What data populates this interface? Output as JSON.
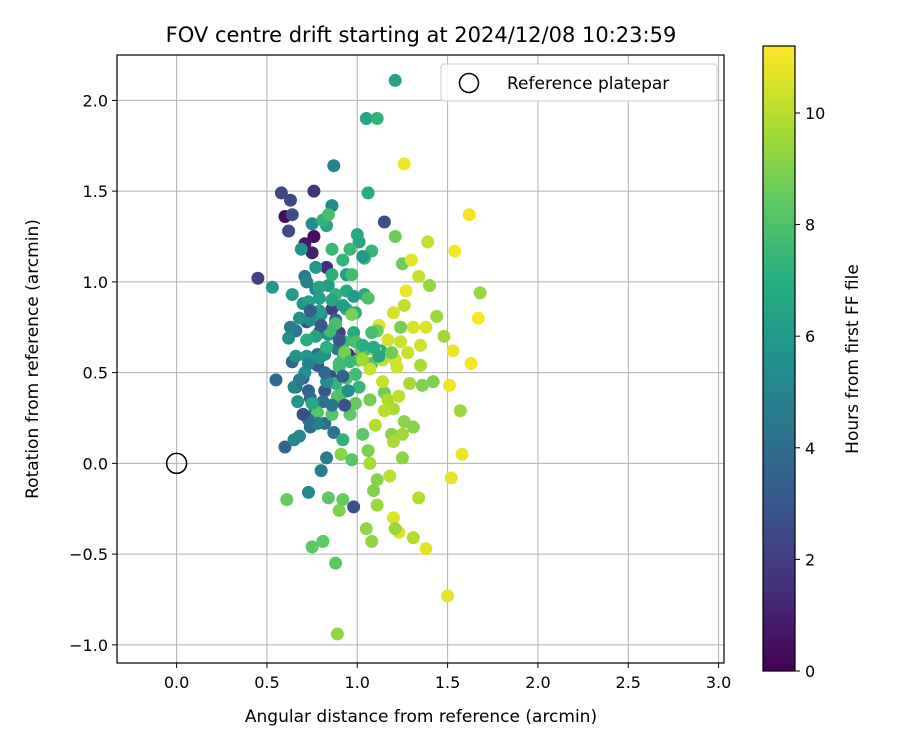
{
  "chart_data": {
    "type": "scatter",
    "title": "FOV centre drift starting at 2024/12/08 10:23:59",
    "xlabel": "Angular distance from reference (arcmin)",
    "ylabel": "Rotation from reference (arcmin)",
    "xlim": [
      -0.33,
      3.03
    ],
    "ylim": [
      -1.1,
      2.25
    ],
    "xticks": [
      0.0,
      0.5,
      1.0,
      1.5,
      2.0,
      2.5,
      3.0
    ],
    "xtick_labels": [
      "0.0",
      "0.5",
      "1.0",
      "1.5",
      "2.0",
      "2.5",
      "3.0"
    ],
    "yticks": [
      -1.0,
      -0.5,
      0.0,
      0.5,
      1.0,
      1.5,
      2.0
    ],
    "ytick_labels": [
      "−1.0",
      "−0.5",
      "0.0",
      "0.5",
      "1.0",
      "1.5",
      "2.0"
    ],
    "grid": true,
    "legend": {
      "location": "upper-right",
      "entries": [
        "Reference platepar"
      ]
    },
    "colormap": "viridis",
    "colorbar": {
      "label": "Hours from first FF file",
      "range": [
        0,
        11.2
      ],
      "ticks": [
        0,
        2,
        4,
        6,
        8,
        10
      ],
      "tick_labels": [
        "0",
        "2",
        "4",
        "6",
        "8",
        "10"
      ]
    },
    "reference_point": {
      "x": 0.0,
      "y": 0.0
    },
    "points": [
      {
        "x": 0.6,
        "y": 1.36,
        "hours": 0.3
      },
      {
        "x": 0.76,
        "y": 1.25,
        "hours": 0.4
      },
      {
        "x": 0.71,
        "y": 1.21,
        "hours": 0.8
      },
      {
        "x": 0.75,
        "y": 1.16,
        "hours": 1.0
      },
      {
        "x": 0.83,
        "y": 1.08,
        "hours": 1.3
      },
      {
        "x": 0.76,
        "y": 1.5,
        "hours": 1.6
      },
      {
        "x": 0.79,
        "y": 0.72,
        "hours": 1.5
      },
      {
        "x": 0.95,
        "y": 0.6,
        "hours": 1.2
      },
      {
        "x": 0.45,
        "y": 1.02,
        "hours": 2.2
      },
      {
        "x": 0.58,
        "y": 1.49,
        "hours": 2.3
      },
      {
        "x": 0.63,
        "y": 1.45,
        "hours": 2.4
      },
      {
        "x": 0.62,
        "y": 1.28,
        "hours": 2.5
      },
      {
        "x": 0.64,
        "y": 1.37,
        "hours": 2.6
      },
      {
        "x": 1.15,
        "y": 1.33,
        "hours": 2.7
      },
      {
        "x": 0.86,
        "y": 0.85,
        "hours": 2.1
      },
      {
        "x": 0.9,
        "y": 0.72,
        "hours": 2.2
      },
      {
        "x": 0.72,
        "y": 0.78,
        "hours": 2.8
      },
      {
        "x": 0.78,
        "y": 0.54,
        "hours": 2.9
      },
      {
        "x": 0.85,
        "y": 0.48,
        "hours": 2.6
      },
      {
        "x": 1.01,
        "y": 0.58,
        "hours": 2.8
      },
      {
        "x": 0.76,
        "y": 0.32,
        "hours": 2.5
      },
      {
        "x": 0.98,
        "y": -0.24,
        "hours": 2.7
      },
      {
        "x": 0.82,
        "y": 0.4,
        "hours": 3.0
      },
      {
        "x": 0.7,
        "y": 0.47,
        "hours": 3.2
      },
      {
        "x": 0.73,
        "y": 0.4,
        "hours": 3.5
      },
      {
        "x": 0.66,
        "y": 0.42,
        "hours": 3.6
      },
      {
        "x": 0.88,
        "y": 0.79,
        "hours": 3.4
      },
      {
        "x": 0.6,
        "y": 0.09,
        "hours": 3.6
      },
      {
        "x": 0.55,
        "y": 0.46,
        "hours": 3.8
      },
      {
        "x": 0.64,
        "y": 0.56,
        "hours": 3.7
      },
      {
        "x": 0.74,
        "y": 0.36,
        "hours": 3.9
      },
      {
        "x": 0.76,
        "y": 0.27,
        "hours": 3.8
      },
      {
        "x": 0.82,
        "y": 0.22,
        "hours": 4.0
      },
      {
        "x": 0.74,
        "y": 0.2,
        "hours": 4.1
      },
      {
        "x": 0.81,
        "y": 0.34,
        "hours": 4.2
      },
      {
        "x": 0.87,
        "y": 0.17,
        "hours": 4.3
      },
      {
        "x": 0.78,
        "y": 0.6,
        "hours": 4.2
      },
      {
        "x": 0.66,
        "y": 0.73,
        "hours": 4.4
      },
      {
        "x": 0.71,
        "y": 1.03,
        "hours": 4.5
      },
      {
        "x": 0.89,
        "y": 0.63,
        "hours": 4.4
      },
      {
        "x": 0.83,
        "y": 0.03,
        "hours": 4.5
      },
      {
        "x": 0.63,
        "y": 0.75,
        "hours": 4.7
      },
      {
        "x": 0.8,
        "y": -0.04,
        "hours": 4.8
      },
      {
        "x": 0.72,
        "y": 1.0,
        "hours": 4.9
      },
      {
        "x": 0.87,
        "y": 1.64,
        "hours": 5.0
      },
      {
        "x": 0.65,
        "y": 0.42,
        "hours": 5.0
      },
      {
        "x": 0.68,
        "y": 0.15,
        "hours": 5.1
      },
      {
        "x": 0.73,
        "y": -0.16,
        "hours": 5.2
      },
      {
        "x": 0.86,
        "y": 1.42,
        "hours": 5.3
      },
      {
        "x": 0.77,
        "y": 0.96,
        "hours": 5.3
      },
      {
        "x": 0.62,
        "y": 0.69,
        "hours": 5.4
      },
      {
        "x": 0.74,
        "y": 0.79,
        "hours": 5.4
      },
      {
        "x": 0.75,
        "y": 1.32,
        "hours": 5.5
      },
      {
        "x": 0.82,
        "y": 0.6,
        "hours": 5.5
      },
      {
        "x": 0.68,
        "y": 0.8,
        "hours": 5.6
      },
      {
        "x": 0.66,
        "y": 0.59,
        "hours": 5.6
      },
      {
        "x": 0.7,
        "y": 0.88,
        "hours": 5.7
      },
      {
        "x": 0.8,
        "y": 0.82,
        "hours": 5.7
      },
      {
        "x": 0.84,
        "y": 0.71,
        "hours": 5.8
      },
      {
        "x": 0.69,
        "y": 1.18,
        "hours": 5.8
      },
      {
        "x": 0.77,
        "y": 1.08,
        "hours": 5.9
      },
      {
        "x": 0.53,
        "y": 0.97,
        "hours": 6.0
      },
      {
        "x": 0.64,
        "y": 0.93,
        "hours": 6.1
      },
      {
        "x": 0.84,
        "y": 0.98,
        "hours": 6.2
      },
      {
        "x": 0.94,
        "y": 1.04,
        "hours": 6.2
      },
      {
        "x": 0.73,
        "y": 0.89,
        "hours": 6.3
      },
      {
        "x": 0.79,
        "y": 0.91,
        "hours": 6.3
      },
      {
        "x": 0.77,
        "y": 0.7,
        "hours": 6.4
      },
      {
        "x": 1.21,
        "y": 2.11,
        "hours": 6.4
      },
      {
        "x": 1.05,
        "y": 1.9,
        "hours": 6.6
      },
      {
        "x": 0.83,
        "y": 1.31,
        "hours": 6.5
      },
      {
        "x": 1.04,
        "y": 0.93,
        "hours": 6.6
      },
      {
        "x": 1.0,
        "y": 1.26,
        "hours": 6.7
      },
      {
        "x": 1.01,
        "y": 1.22,
        "hours": 6.7
      },
      {
        "x": 0.92,
        "y": 0.57,
        "hours": 6.8
      },
      {
        "x": 0.98,
        "y": 0.72,
        "hours": 6.8
      },
      {
        "x": 1.13,
        "y": 0.62,
        "hours": 6.9
      },
      {
        "x": 1.06,
        "y": 1.49,
        "hours": 6.9
      },
      {
        "x": 0.72,
        "y": 0.68,
        "hours": 7.0
      },
      {
        "x": 0.94,
        "y": 0.85,
        "hours": 7.0
      },
      {
        "x": 0.86,
        "y": 1.04,
        "hours": 7.1
      },
      {
        "x": 0.99,
        "y": 0.83,
        "hours": 7.1
      },
      {
        "x": 1.11,
        "y": 1.9,
        "hours": 7.2
      },
      {
        "x": 0.81,
        "y": 1.34,
        "hours": 7.2
      },
      {
        "x": 0.92,
        "y": 1.12,
        "hours": 7.3
      },
      {
        "x": 0.88,
        "y": 0.93,
        "hours": 7.3
      },
      {
        "x": 1.04,
        "y": 1.13,
        "hours": 7.4
      },
      {
        "x": 1.08,
        "y": 1.17,
        "hours": 7.4
      },
      {
        "x": 0.96,
        "y": 1.18,
        "hours": 7.5
      },
      {
        "x": 0.86,
        "y": 1.18,
        "hours": 7.5
      },
      {
        "x": 1.05,
        "y": 0.63,
        "hours": 7.6
      },
      {
        "x": 0.93,
        "y": 0.67,
        "hours": 7.6
      },
      {
        "x": 0.99,
        "y": 0.49,
        "hours": 7.7
      },
      {
        "x": 0.9,
        "y": 0.53,
        "hours": 7.7
      },
      {
        "x": 0.84,
        "y": 1.37,
        "hours": 7.8
      },
      {
        "x": 0.97,
        "y": 1.04,
        "hours": 7.8
      },
      {
        "x": 0.88,
        "y": 0.77,
        "hours": 7.9
      },
      {
        "x": 0.9,
        "y": 0.35,
        "hours": 7.9
      },
      {
        "x": 1.06,
        "y": 0.91,
        "hours": 8.0
      },
      {
        "x": 0.92,
        "y": 0.39,
        "hours": 8.0
      },
      {
        "x": 1.01,
        "y": 0.57,
        "hours": 8.1
      },
      {
        "x": 1.08,
        "y": 0.55,
        "hours": 8.1
      },
      {
        "x": 0.78,
        "y": 0.28,
        "hours": 8.2
      },
      {
        "x": 0.86,
        "y": 0.27,
        "hours": 8.2
      },
      {
        "x": 0.88,
        "y": -0.55,
        "hours": 8.3
      },
      {
        "x": 0.84,
        "y": -0.19,
        "hours": 8.3
      },
      {
        "x": 0.75,
        "y": -0.46,
        "hours": 8.4
      },
      {
        "x": 0.81,
        "y": -0.43,
        "hours": 8.4
      },
      {
        "x": 0.61,
        "y": -0.2,
        "hours": 8.5
      },
      {
        "x": 0.92,
        "y": -0.2,
        "hours": 8.5
      },
      {
        "x": 1.21,
        "y": 1.25,
        "hours": 8.6
      },
      {
        "x": 1.25,
        "y": 1.1,
        "hours": 8.6
      },
      {
        "x": 1.02,
        "y": 0.63,
        "hours": 8.7
      },
      {
        "x": 1.15,
        "y": 0.39,
        "hours": 8.7
      },
      {
        "x": 1.07,
        "y": 0.35,
        "hours": 8.8
      },
      {
        "x": 0.93,
        "y": 0.61,
        "hours": 8.8
      },
      {
        "x": 0.97,
        "y": 0.82,
        "hours": 8.9
      },
      {
        "x": 1.06,
        "y": 0.07,
        "hours": 8.9
      },
      {
        "x": 0.9,
        "y": -0.26,
        "hours": 9.0
      },
      {
        "x": 1.09,
        "y": -0.15,
        "hours": 9.0
      },
      {
        "x": 1.11,
        "y": -0.09,
        "hours": 9.1
      },
      {
        "x": 1.19,
        "y": 0.16,
        "hours": 9.1
      },
      {
        "x": 1.25,
        "y": 0.03,
        "hours": 9.2
      },
      {
        "x": 0.91,
        "y": 0.05,
        "hours": 9.2
      },
      {
        "x": 0.89,
        "y": -0.94,
        "hours": 9.3
      },
      {
        "x": 1.08,
        "y": -0.43,
        "hours": 9.3
      },
      {
        "x": 1.4,
        "y": 0.98,
        "hours": 9.4
      },
      {
        "x": 1.68,
        "y": 0.94,
        "hours": 9.4
      },
      {
        "x": 1.57,
        "y": 0.29,
        "hours": 9.5
      },
      {
        "x": 1.44,
        "y": 0.81,
        "hours": 9.5
      },
      {
        "x": 1.48,
        "y": 0.7,
        "hours": 9.6
      },
      {
        "x": 1.25,
        "y": 0.16,
        "hours": 9.6
      },
      {
        "x": 1.35,
        "y": 0.54,
        "hours": 9.7
      },
      {
        "x": 1.29,
        "y": 0.44,
        "hours": 9.7
      },
      {
        "x": 1.17,
        "y": 0.35,
        "hours": 9.8
      },
      {
        "x": 1.2,
        "y": 0.3,
        "hours": 9.8
      },
      {
        "x": 1.34,
        "y": -0.19,
        "hours": 9.9
      },
      {
        "x": 1.31,
        "y": -0.41,
        "hours": 9.9
      },
      {
        "x": 1.18,
        "y": -0.07,
        "hours": 10.0
      },
      {
        "x": 1.1,
        "y": 0.62,
        "hours": 10.0
      },
      {
        "x": 1.14,
        "y": 0.57,
        "hours": 10.1
      },
      {
        "x": 1.26,
        "y": 0.87,
        "hours": 10.1
      },
      {
        "x": 1.34,
        "y": 1.03,
        "hours": 10.2
      },
      {
        "x": 1.39,
        "y": 1.22,
        "hours": 10.2
      },
      {
        "x": 1.24,
        "y": 0.67,
        "hours": 10.3
      },
      {
        "x": 1.28,
        "y": 0.61,
        "hours": 10.3
      },
      {
        "x": 1.35,
        "y": 0.65,
        "hours": 10.4
      },
      {
        "x": 1.22,
        "y": 0.53,
        "hours": 10.4
      },
      {
        "x": 1.31,
        "y": 0.75,
        "hours": 10.5
      },
      {
        "x": 1.2,
        "y": 0.83,
        "hours": 10.5
      },
      {
        "x": 1.38,
        "y": 0.75,
        "hours": 10.6
      },
      {
        "x": 1.2,
        "y": -0.3,
        "hours": 10.6
      },
      {
        "x": 1.23,
        "y": -0.38,
        "hours": 10.7
      },
      {
        "x": 1.38,
        "y": -0.47,
        "hours": 10.7
      },
      {
        "x": 1.5,
        "y": -0.73,
        "hours": 10.8
      },
      {
        "x": 1.52,
        "y": -0.08,
        "hours": 10.8
      },
      {
        "x": 1.58,
        "y": 0.05,
        "hours": 10.9
      },
      {
        "x": 1.53,
        "y": 0.62,
        "hours": 10.9
      },
      {
        "x": 1.54,
        "y": 1.17,
        "hours": 11.0
      },
      {
        "x": 1.62,
        "y": 1.37,
        "hours": 11.0
      },
      {
        "x": 1.67,
        "y": 0.8,
        "hours": 11.1
      },
      {
        "x": 1.63,
        "y": 0.55,
        "hours": 11.1
      },
      {
        "x": 1.26,
        "y": 1.65,
        "hours": 11.0
      },
      {
        "x": 1.51,
        "y": 0.43,
        "hours": 11.0
      },
      {
        "x": 1.27,
        "y": 0.95,
        "hours": 10.9
      },
      {
        "x": 1.3,
        "y": 1.12,
        "hours": 10.8
      },
      {
        "x": 1.12,
        "y": 0.76,
        "hours": 10.6
      },
      {
        "x": 1.17,
        "y": 0.68,
        "hours": 10.5
      },
      {
        "x": 1.21,
        "y": 0.57,
        "hours": 10.4
      },
      {
        "x": 1.07,
        "y": 0.52,
        "hours": 10.3
      },
      {
        "x": 1.14,
        "y": 0.45,
        "hours": 10.2
      },
      {
        "x": 1.23,
        "y": 0.37,
        "hours": 10.1
      },
      {
        "x": 1.15,
        "y": 0.29,
        "hours": 10.0
      },
      {
        "x": 1.1,
        "y": 0.21,
        "hours": 9.9
      },
      {
        "x": 1.2,
        "y": 0.12,
        "hours": 9.8
      },
      {
        "x": 1.07,
        "y": 0.0,
        "hours": 9.7
      },
      {
        "x": 1.03,
        "y": 0.57,
        "hours": 9.6
      },
      {
        "x": 1.11,
        "y": -0.23,
        "hours": 9.5
      },
      {
        "x": 1.21,
        "y": -0.36,
        "hours": 9.4
      },
      {
        "x": 1.05,
        "y": -0.36,
        "hours": 9.3
      },
      {
        "x": 1.26,
        "y": 0.23,
        "hours": 9.2
      },
      {
        "x": 1.31,
        "y": 0.2,
        "hours": 9.1
      },
      {
        "x": 1.36,
        "y": 0.43,
        "hours": 9.0
      },
      {
        "x": 1.42,
        "y": 0.45,
        "hours": 8.9
      },
      {
        "x": 1.24,
        "y": 0.75,
        "hours": 8.8
      },
      {
        "x": 1.19,
        "y": 0.61,
        "hours": 8.7
      },
      {
        "x": 1.11,
        "y": 0.73,
        "hours": 8.6
      },
      {
        "x": 0.99,
        "y": 0.33,
        "hours": 8.5
      },
      {
        "x": 0.96,
        "y": 0.27,
        "hours": 8.4
      },
      {
        "x": 1.03,
        "y": 0.16,
        "hours": 8.3
      },
      {
        "x": 0.97,
        "y": 0.02,
        "hours": 8.2
      },
      {
        "x": 0.89,
        "y": 0.37,
        "hours": 8.1
      },
      {
        "x": 0.94,
        "y": 0.47,
        "hours": 8.0
      },
      {
        "x": 0.99,
        "y": 0.67,
        "hours": 7.9
      },
      {
        "x": 1.08,
        "y": 0.72,
        "hours": 7.8
      },
      {
        "x": 0.9,
        "y": 0.55,
        "hours": 7.7
      },
      {
        "x": 0.85,
        "y": 0.73,
        "hours": 7.6
      },
      {
        "x": 0.96,
        "y": 0.56,
        "hours": 7.5
      },
      {
        "x": 1.01,
        "y": 0.42,
        "hours": 7.4
      },
      {
        "x": 0.88,
        "y": 0.44,
        "hours": 7.3
      },
      {
        "x": 0.92,
        "y": 0.13,
        "hours": 7.2
      },
      {
        "x": 0.83,
        "y": 0.64,
        "hours": 7.1
      },
      {
        "x": 1.03,
        "y": 0.65,
        "hours": 7.0
      },
      {
        "x": 1.09,
        "y": 0.64,
        "hours": 6.9
      },
      {
        "x": 0.94,
        "y": 0.95,
        "hours": 6.8
      },
      {
        "x": 0.75,
        "y": 0.33,
        "hours": 6.7
      },
      {
        "x": 1.12,
        "y": 0.59,
        "hours": 6.6
      },
      {
        "x": 0.86,
        "y": 0.9,
        "hours": 6.5
      },
      {
        "x": 0.79,
        "y": 0.97,
        "hours": 6.4
      },
      {
        "x": 0.79,
        "y": 0.84,
        "hours": 6.3
      },
      {
        "x": 0.92,
        "y": 0.87,
        "hours": 6.2
      },
      {
        "x": 0.98,
        "y": 0.92,
        "hours": 6.1
      },
      {
        "x": 1.03,
        "y": 1.14,
        "hours": 6.0
      },
      {
        "x": 0.72,
        "y": 0.59,
        "hours": 5.9
      },
      {
        "x": 0.67,
        "y": 0.34,
        "hours": 5.8
      },
      {
        "x": 0.79,
        "y": 0.58,
        "hours": 5.7
      },
      {
        "x": 0.71,
        "y": 0.5,
        "hours": 5.6
      },
      {
        "x": 0.83,
        "y": 0.45,
        "hours": 5.5
      },
      {
        "x": 0.95,
        "y": 0.4,
        "hours": 5.4
      },
      {
        "x": 0.65,
        "y": 0.13,
        "hours": 5.2
      },
      {
        "x": 0.73,
        "y": 0.55,
        "hours": 5.0
      },
      {
        "x": 0.78,
        "y": 0.22,
        "hours": 4.9
      },
      {
        "x": 0.68,
        "y": 0.46,
        "hours": 4.6
      },
      {
        "x": 0.86,
        "y": 0.32,
        "hours": 4.4
      },
      {
        "x": 0.73,
        "y": 0.24,
        "hours": 4.2
      },
      {
        "x": 0.82,
        "y": 0.5,
        "hours": 3.8
      },
      {
        "x": 0.92,
        "y": 0.48,
        "hours": 3.5
      },
      {
        "x": 0.74,
        "y": 0.84,
        "hours": 3.3
      },
      {
        "x": 0.8,
        "y": 0.76,
        "hours": 3.1
      },
      {
        "x": 0.9,
        "y": 0.68,
        "hours": 3.0
      },
      {
        "x": 0.93,
        "y": 0.32,
        "hours": 2.9
      },
      {
        "x": 0.7,
        "y": 0.27,
        "hours": 2.7
      }
    ]
  }
}
